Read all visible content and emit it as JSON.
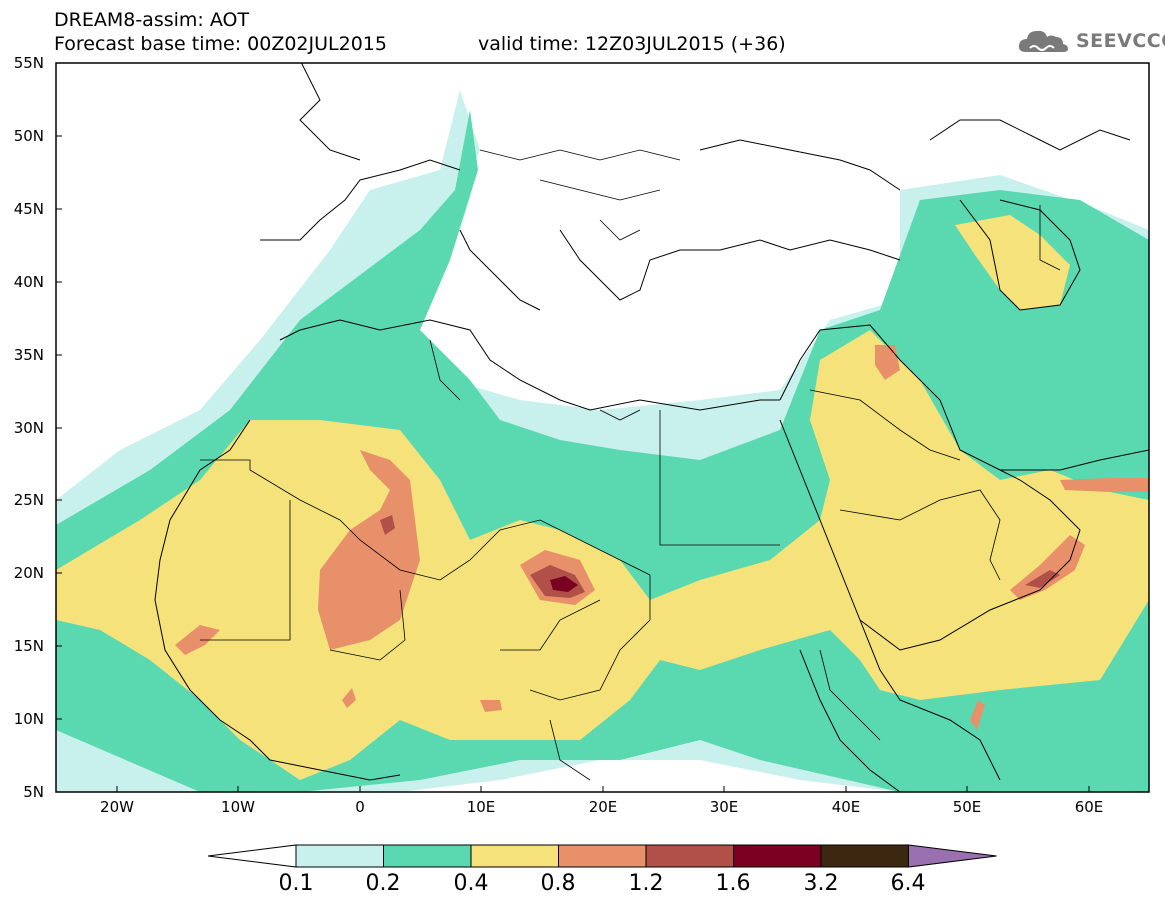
{
  "header": {
    "title": "DREAM8-assim: AOT",
    "forecast_base": "Forecast base time: 00Z02JUL2015",
    "valid_time": "valid time: 12Z03JUL2015 (+36)"
  },
  "logo": {
    "text": "SEEVCCC",
    "icon": "cloud-icon"
  },
  "map": {
    "lat_labels": [
      "55N",
      "50N",
      "45N",
      "40N",
      "35N",
      "30N",
      "25N",
      "20N",
      "15N",
      "10N",
      "5N"
    ],
    "lon_labels": [
      "20W",
      "10W",
      "0",
      "10E",
      "20E",
      "30E",
      "40E",
      "50E",
      "60E"
    ],
    "extent": {
      "lon": [
        -25,
        65
      ],
      "lat": [
        5,
        55
      ]
    }
  },
  "colorbar": {
    "labels": [
      "0.1",
      "0.2",
      "0.4",
      "0.8",
      "1.2",
      "1.6",
      "3.2",
      "6.4"
    ],
    "colors": [
      "#ffffff",
      "#c8f0ec",
      "#5ad8b0",
      "#f5e27a",
      "#e8906a",
      "#b05048",
      "#7a0022",
      "#3c2810",
      "#9a70b0"
    ]
  },
  "colors": {
    "very_light": "#c8f0ec",
    "light": "#5ad8b0",
    "moderate": "#f5e27a",
    "high": "#e8906a",
    "very_high": "#b05048",
    "extreme": "#7a0022"
  }
}
